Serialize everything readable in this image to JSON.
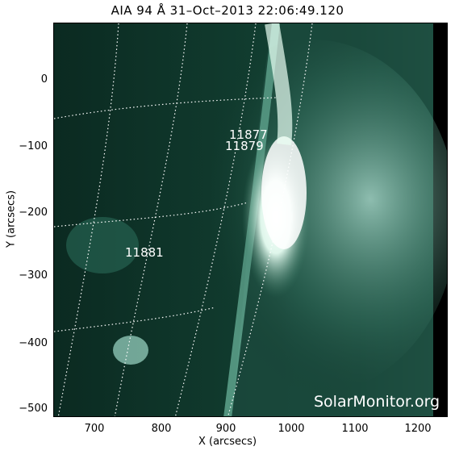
{
  "title": "AIA 94 Å 31–Oct–2013 22:06:49.120",
  "axes": {
    "xlabel": "X (arcsecs)",
    "ylabel": "Y (arcsecs)",
    "xticks": [
      "700",
      "800",
      "900",
      "1000",
      "1100",
      "1200"
    ],
    "yticks": [
      "0",
      "−100",
      "−200",
      "−300",
      "−400",
      "−500"
    ]
  },
  "regions": [
    {
      "label": "11877"
    },
    {
      "label": "11879"
    },
    {
      "label": "11881"
    }
  ],
  "watermark": "SolarMonitor.org",
  "colors": {
    "accent": "#0b2a21",
    "flare": "#ffffff"
  }
}
